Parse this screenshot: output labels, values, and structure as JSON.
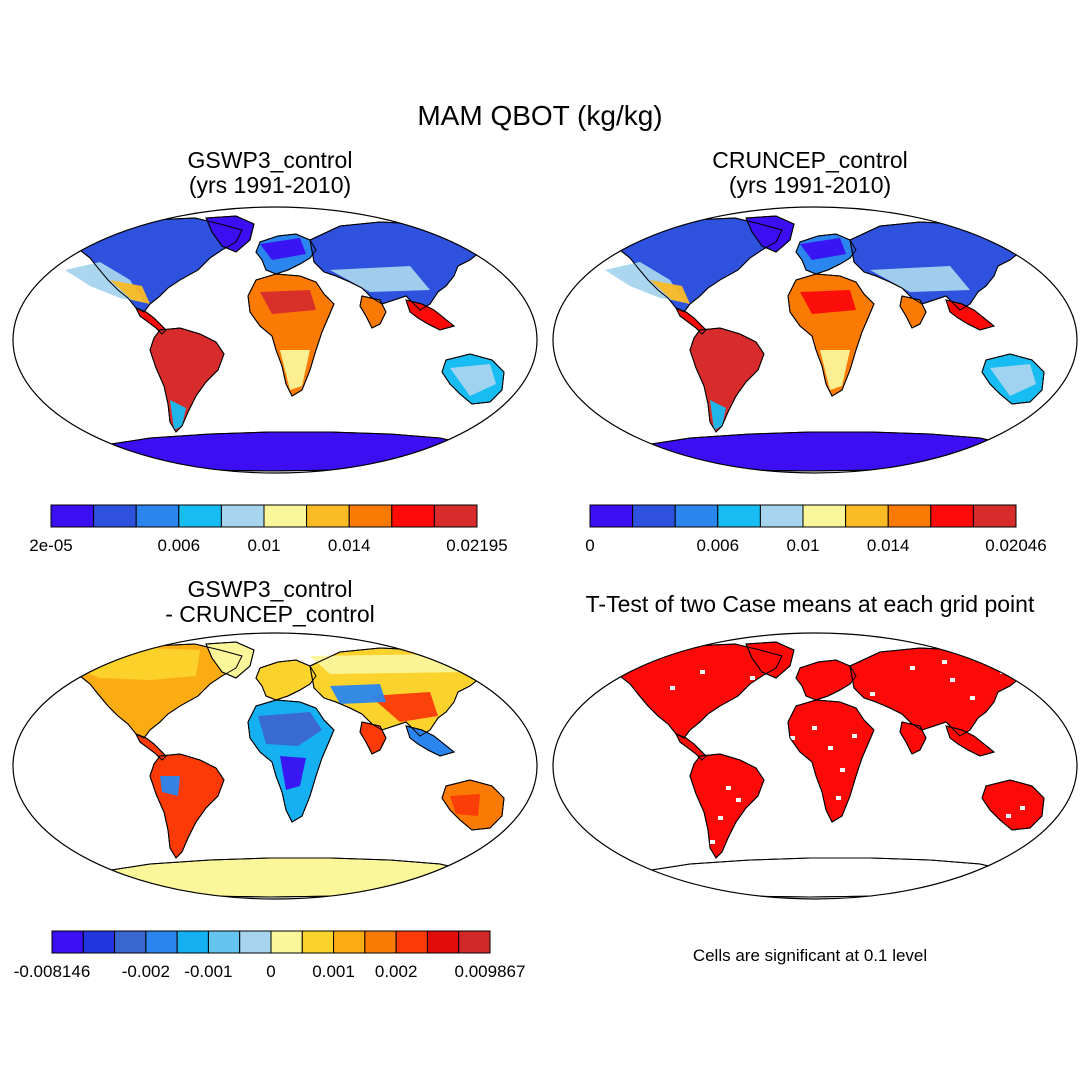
{
  "title": "MAM QBOT (kg/kg)",
  "panels": [
    {
      "title_line1": "GSWP3_control",
      "title_line2": "(yrs 1991-2010)",
      "colorbar": {
        "colors": [
          "#3b0ff2",
          "#2e52de",
          "#2a86ee",
          "#17bdf2",
          "#a6d4ee",
          "#fbf69a",
          "#fbbb25",
          "#fb7a04",
          "#fb0a08",
          "#d82c2c"
        ],
        "labels": [
          {
            "text": "2e-05",
            "boundary": 0
          },
          {
            "text": "0.006",
            "boundary": 3
          },
          {
            "text": "0.01",
            "boundary": 5
          },
          {
            "text": "0.014",
            "boundary": 7
          },
          {
            "text": "0.02195",
            "boundary": 10
          }
        ]
      }
    },
    {
      "title_line1": "CRUNCEP_control",
      "title_line2": "(yrs 1991-2010)",
      "colorbar": {
        "colors": [
          "#3b0ff2",
          "#2e52de",
          "#2a86ee",
          "#17bdf2",
          "#a6d4ee",
          "#fbf69a",
          "#fbbb25",
          "#fb7a04",
          "#fb0a08",
          "#d82c2c"
        ],
        "labels": [
          {
            "text": "0",
            "boundary": 0
          },
          {
            "text": "0.006",
            "boundary": 3
          },
          {
            "text": "0.01",
            "boundary": 5
          },
          {
            "text": "0.014",
            "boundary": 7
          },
          {
            "text": "0.02046",
            "boundary": 10
          }
        ]
      }
    },
    {
      "title_line1": "GSWP3_control",
      "title_line2": "- CRUNCEP_control",
      "colorbar": {
        "colors": [
          "#3b0ff2",
          "#2236e0",
          "#3a66d0",
          "#2a86ee",
          "#14b0f2",
          "#65c3ee",
          "#a6d4ee",
          "#fbf69a",
          "#fbd32c",
          "#fbac12",
          "#fb7a04",
          "#fb3a08",
          "#e20c0a",
          "#d22828"
        ],
        "labels": [
          {
            "text": "-0.008146",
            "boundary": 0
          },
          {
            "text": "-0.002",
            "boundary": 3
          },
          {
            "text": "-0.001",
            "boundary": 5
          },
          {
            "text": "0",
            "boundary": 7
          },
          {
            "text": "0.001",
            "boundary": 9
          },
          {
            "text": "0.002",
            "boundary": 11
          },
          {
            "text": "0.009867",
            "boundary": 14
          }
        ]
      }
    },
    {
      "title_line1": "T-Test of two Case means at each grid point",
      "note": "Cells are significant at 0.1 level"
    }
  ]
}
